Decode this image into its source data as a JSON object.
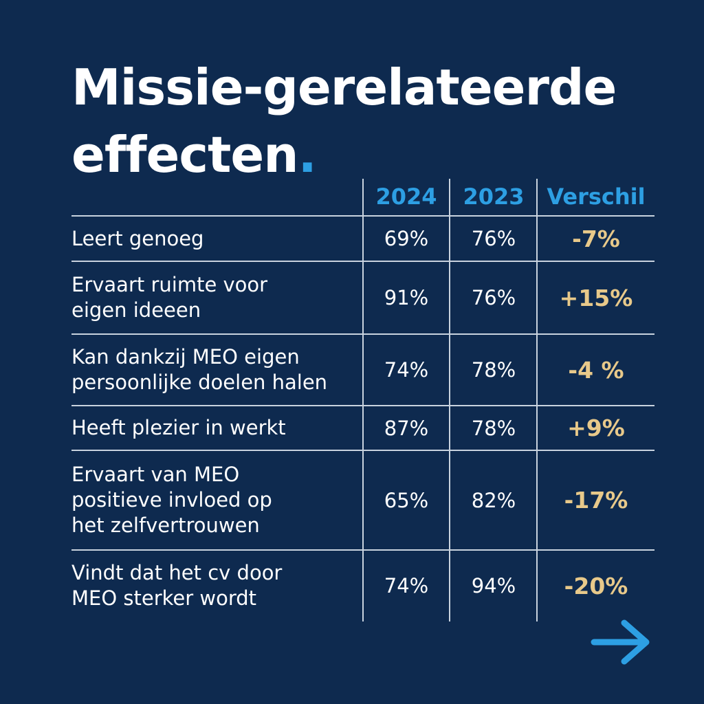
{
  "title_lines": [
    "Missie-gerelateerde",
    "effecten"
  ],
  "title_dot": ".",
  "colors": {
    "background": "#0e2a4f",
    "header": "#2d9fe3",
    "difference": "#e8c98a",
    "text": "#ffffff",
    "arrow": "#2d9fe3"
  },
  "chart_data": {
    "type": "table",
    "columns": [
      "2024",
      "2023",
      "Verschil"
    ],
    "rows": [
      {
        "label_lines": [
          "Leert genoeg"
        ],
        "v2024": "69%",
        "v2023": "76%",
        "diff": "-7%"
      },
      {
        "label_lines": [
          "Ervaart ruimte voor",
          "eigen ideeen"
        ],
        "v2024": "91%",
        "v2023": "76%",
        "diff": "+15%"
      },
      {
        "label_lines": [
          "Kan dankzij MEO eigen",
          "persoonlijke doelen halen"
        ],
        "v2024": "74%",
        "v2023": "78%",
        "diff": "-4 %"
      },
      {
        "label_lines": [
          "Heeft plezier in werkt"
        ],
        "v2024": "87%",
        "v2023": "78%",
        "diff": "+9%"
      },
      {
        "label_lines": [
          "Ervaart van MEO",
          "positieve invloed op",
          "het zelfvertrouwen"
        ],
        "v2024": "65%",
        "v2023": "82%",
        "diff": "-17%"
      },
      {
        "label_lines": [
          "Vindt dat het cv door",
          "MEO sterker wordt"
        ],
        "v2024": "74%",
        "v2023": "94%",
        "diff": "-20%"
      }
    ]
  },
  "next_icon": "arrow-right-icon"
}
